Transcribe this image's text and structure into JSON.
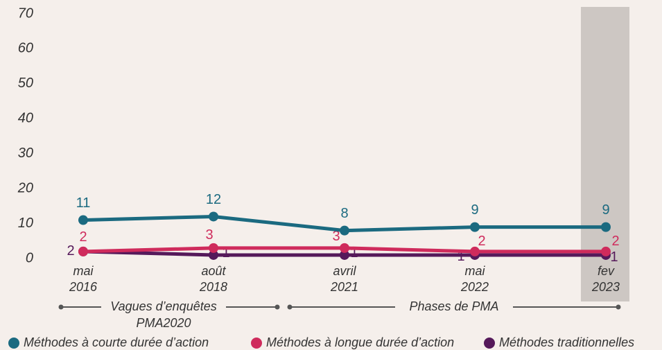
{
  "chart_data": {
    "type": "line",
    "categories": [
      "mai 2016",
      "août 2018",
      "avril 2021",
      "mai 2022",
      "fev 2023"
    ],
    "series": [
      {
        "name": "Méthodes à courte durée d’action",
        "color": "#1b6a80",
        "values": [
          11,
          12,
          8,
          9,
          9
        ]
      },
      {
        "name": "Méthodes à longue durée d’action",
        "color": "#cf2b5c",
        "values": [
          2,
          3,
          3,
          2,
          2
        ]
      },
      {
        "name": "Méthodes traditionnelles",
        "color": "#55195a",
        "values": [
          2,
          1,
          1,
          1,
          1
        ]
      }
    ],
    "ylim": [
      0,
      70
    ],
    "yticks": [
      0,
      10,
      20,
      30,
      40,
      50,
      60,
      70
    ],
    "annotations": [
      [
        "Vagues d’enquêtes",
        "PMA2020"
      ],
      [
        "Phases de PMA"
      ]
    ]
  }
}
